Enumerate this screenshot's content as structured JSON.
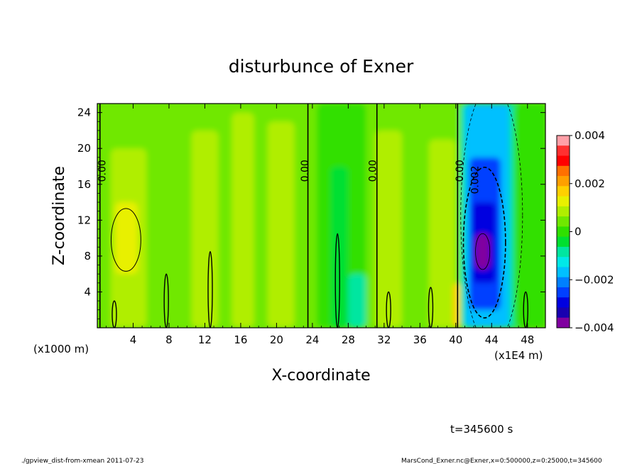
{
  "chart_data": {
    "type": "heatmap",
    "title": "disturbunce of Exner",
    "xlabel": "X-coordinate",
    "ylabel": "Z-coordinate",
    "x_unit_left": "(x1000 m)",
    "x_unit_right": "(x1E4 m)",
    "xlim": [
      0,
      50
    ],
    "ylim": [
      0,
      25
    ],
    "x_ticks": [
      4,
      8,
      12,
      16,
      20,
      24,
      28,
      32,
      36,
      40,
      44,
      48
    ],
    "y_ticks": [
      4,
      8,
      12,
      16,
      20,
      24
    ],
    "colorbar": {
      "ticks": [
        0.004,
        0.002,
        0,
        -0.002,
        -0.004
      ],
      "tick_labels": [
        "0.004",
        "0.002",
        "0",
        "−0.002",
        "−0.004"
      ],
      "range": [
        -0.004,
        0.004
      ],
      "colors": [
        "#ffa0a8",
        "#ff3030",
        "#ff0000",
        "#ff7000",
        "#ffa000",
        "#ffd000",
        "#e8f000",
        "#b0ee00",
        "#70e800",
        "#30e000",
        "#00e030",
        "#00e6a0",
        "#00e8e8",
        "#00c0ff",
        "#0080ff",
        "#0040ff",
        "#0000e0",
        "#1800b0",
        "#8000a0"
      ]
    },
    "contour_labels": [
      {
        "text": "0.00",
        "x": 0.6,
        "z": 17.5
      },
      {
        "text": "0.00",
        "x": 23.2,
        "z": 17.5
      },
      {
        "text": "0.00",
        "x": 30.8,
        "z": 17.5
      },
      {
        "text": "0.00",
        "x": 40.5,
        "z": 17.5
      },
      {
        "text": "0.002",
        "x": 42.2,
        "z": 16.5
      }
    ],
    "field_regions": [
      {
        "x": [
          0,
          50
        ],
        "z": [
          0,
          25
        ],
        "value": 0.0005
      },
      {
        "x": [
          1.5,
          5.5
        ],
        "z": [
          0,
          20
        ],
        "value": 0.001
      },
      {
        "x": [
          2,
          4.5
        ],
        "z": [
          6,
          14
        ],
        "value": 0.0013
      },
      {
        "x": [
          10.5,
          13.5
        ],
        "z": [
          0,
          22
        ],
        "value": 0.0007
      },
      {
        "x": [
          15,
          17.5
        ],
        "z": [
          0,
          24
        ],
        "value": 0.0007
      },
      {
        "x": [
          19,
          22
        ],
        "z": [
          0,
          23
        ],
        "value": 0.0007
      },
      {
        "x": [
          24.5,
          30
        ],
        "z": [
          0,
          25
        ],
        "value": 0.0
      },
      {
        "x": [
          26,
          28
        ],
        "z": [
          0,
          18
        ],
        "value": -0.0004
      },
      {
        "x": [
          28,
          30
        ],
        "z": [
          0,
          6
        ],
        "value": -0.0008
      },
      {
        "x": [
          31,
          34
        ],
        "z": [
          0,
          22
        ],
        "value": 0.0007
      },
      {
        "x": [
          37,
          40
        ],
        "z": [
          0,
          21
        ],
        "value": 0.0008
      },
      {
        "x": [
          39.7,
          40.5
        ],
        "z": [
          0,
          5
        ],
        "value": 0.0015
      },
      {
        "x": [
          40.5,
          50
        ],
        "z": [
          0,
          25
        ],
        "value": -0.001
      },
      {
        "x": [
          41,
          46
        ],
        "z": [
          0,
          25
        ],
        "value": -0.0018
      },
      {
        "x": [
          41.5,
          45
        ],
        "z": [
          2,
          19
        ],
        "value": -0.0025
      },
      {
        "x": [
          41.8,
          44.5
        ],
        "z": [
          5,
          14
        ],
        "value": -0.0031
      },
      {
        "x": [
          42.2,
          43.8
        ],
        "z": [
          6.5,
          10.5
        ],
        "value": -0.0036
      },
      {
        "x": [
          46.5,
          50
        ],
        "z": [
          0,
          25
        ],
        "value": 0.0
      }
    ],
    "time_label": "t=345600 s",
    "footer_left": "./gpview_dist-from-xmean  2011-07-23",
    "footer_right": "MarsCond_Exner.nc@Exner,x=0:500000,z=0:25000,t=345600"
  }
}
